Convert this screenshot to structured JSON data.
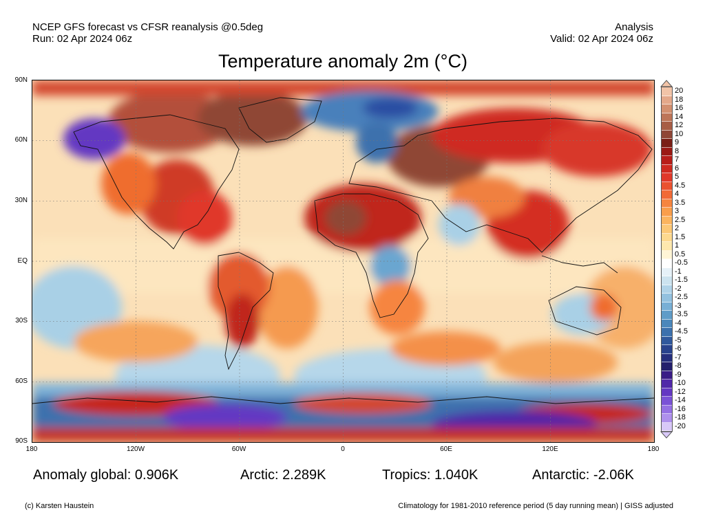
{
  "header": {
    "line1_left": "NCEP GFS forecast vs CFSR reanalysis @0.5deg",
    "line2_left": "Run: 02 Apr 2024 06z",
    "line1_right": "Analysis",
    "line2_right": "Valid: 02 Apr 2024 06z"
  },
  "title": "Temperature anomaly 2m (°C)",
  "map": {
    "projection": "equirectangular-global",
    "lat_labels": [
      "90N",
      "60N",
      "30N",
      "EQ",
      "30S",
      "60S",
      "90S"
    ],
    "lon_labels": [
      "180",
      "120W",
      "60W",
      "0",
      "60E",
      "120E",
      "180"
    ],
    "grid": true,
    "colors": {
      "warm_extreme": "#8b4a3c",
      "warm_strong": "#c6281d",
      "warm_mid": "#ef6d2d",
      "warm_light": "#f9c98a",
      "neutral": "#fdf6e6",
      "cool_light": "#cce3ef",
      "cool_mid": "#5f9cc8",
      "cool_strong": "#2b4ea3",
      "cool_extreme": "#7a52d6"
    },
    "regions": [
      {
        "name": "North Africa / Sahara",
        "anomaly": "strong warm"
      },
      {
        "name": "Eastern Europe / Western Russia",
        "anomaly": "extreme warm"
      },
      {
        "name": "Canadian Arctic / Greenland",
        "anomaly": "extreme warm"
      },
      {
        "name": "Eastern North America",
        "anomaly": "warm"
      },
      {
        "name": "Southeast Asia / China",
        "anomaly": "strong warm"
      },
      {
        "name": "Scandinavia / Barents",
        "anomaly": "cold"
      },
      {
        "name": "Alaska",
        "anomaly": "cold"
      },
      {
        "name": "Antarctica interior",
        "anomaly": "extreme cold"
      },
      {
        "name": "Southern Ocean coast",
        "anomaly": "strong warm"
      }
    ]
  },
  "legend": {
    "arrow_top_color": "#f2c4a8",
    "arrow_bottom_color": "#d8c8f8",
    "entries": [
      {
        "label": "20",
        "color": "#f2c4a8"
      },
      {
        "label": "18",
        "color": "#e4a88a"
      },
      {
        "label": "16",
        "color": "#d39070"
      },
      {
        "label": "14",
        "color": "#bd7558"
      },
      {
        "label": "12",
        "color": "#a75d45"
      },
      {
        "label": "10",
        "color": "#8f4636"
      },
      {
        "label": "9",
        "color": "#7a1f16"
      },
      {
        "label": "8",
        "color": "#9b1a14"
      },
      {
        "label": "7",
        "color": "#b81e19"
      },
      {
        "label": "6",
        "color": "#cf2a20"
      },
      {
        "label": "5",
        "color": "#e0382a"
      },
      {
        "label": "4.5",
        "color": "#ea5230"
      },
      {
        "label": "4",
        "color": "#f16a36"
      },
      {
        "label": "3.5",
        "color": "#f6853f"
      },
      {
        "label": "3",
        "color": "#f99e4b"
      },
      {
        "label": "2.5",
        "color": "#fbb45e"
      },
      {
        "label": "2",
        "color": "#fcc876"
      },
      {
        "label": "1.5",
        "color": "#fdd98f"
      },
      {
        "label": "1",
        "color": "#fee8ad"
      },
      {
        "label": "0.5",
        "color": "#fff5d6"
      },
      {
        "label": "-0.5",
        "color": "#ffffff"
      },
      {
        "label": "-1",
        "color": "#e6f1f8"
      },
      {
        "label": "-1.5",
        "color": "#cce3ef"
      },
      {
        "label": "-2",
        "color": "#b0d3e8"
      },
      {
        "label": "-2.5",
        "color": "#93c1df"
      },
      {
        "label": "-3",
        "color": "#78afd5"
      },
      {
        "label": "-3.5",
        "color": "#5f9cc8"
      },
      {
        "label": "-4",
        "color": "#4b87bb"
      },
      {
        "label": "-4.5",
        "color": "#3c71ad"
      },
      {
        "label": "-5",
        "color": "#30599d"
      },
      {
        "label": "-6",
        "color": "#29438d"
      },
      {
        "label": "-7",
        "color": "#262f7d"
      },
      {
        "label": "-8",
        "color": "#24206c"
      },
      {
        "label": "-9",
        "color": "#3a1d86"
      },
      {
        "label": "-10",
        "color": "#5028a8"
      },
      {
        "label": "-12",
        "color": "#6438c2"
      },
      {
        "label": "-14",
        "color": "#7a52d6"
      },
      {
        "label": "-16",
        "color": "#9470e3"
      },
      {
        "label": "-18",
        "color": "#ae90ec"
      },
      {
        "label": "-20",
        "color": "#d8c8f8"
      }
    ]
  },
  "stats": {
    "global": "Anomaly global: 0.906K",
    "arctic": "Arctic: 2.289K",
    "tropics": "Tropics: 1.040K",
    "antarctic": "Antarctic: -2.06K"
  },
  "footer": {
    "left": "(c) Karsten Haustein",
    "right": "Climatology for 1981-2010 reference period (5 day running mean) | GISS adjusted"
  }
}
